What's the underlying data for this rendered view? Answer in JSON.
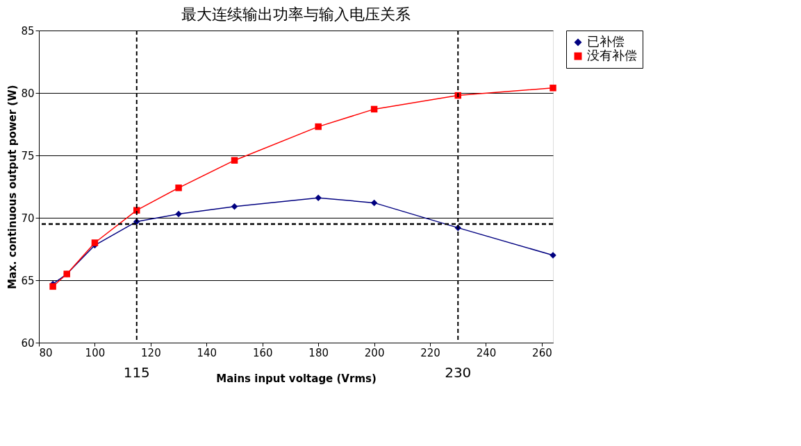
{
  "chart_data": {
    "type": "line",
    "title": "最大连续输出功率与输入电压关系",
    "xlabel": "Mains input voltage (Vrms)",
    "ylabel": "Max. continuous output power (W)",
    "x": [
      85,
      90,
      100,
      115,
      130,
      150,
      180,
      200,
      230,
      264
    ],
    "series": [
      {
        "name": "已补偿",
        "color": "#000080",
        "marker": "diamond",
        "values": [
          64.7,
          65.5,
          67.8,
          69.7,
          70.3,
          70.9,
          71.6,
          71.2,
          69.2,
          67.0
        ]
      },
      {
        "name": "没有补偿",
        "color": "#ff0000",
        "marker": "square",
        "values": [
          64.5,
          65.5,
          68.0,
          70.6,
          72.4,
          74.6,
          77.3,
          78.7,
          79.8,
          80.4
        ]
      }
    ],
    "xlim": [
      80,
      264
    ],
    "xticks": [
      80,
      100,
      120,
      140,
      160,
      180,
      200,
      220,
      240,
      260
    ],
    "ylim": [
      60,
      85
    ],
    "yticks": [
      60,
      65,
      70,
      75,
      80,
      85
    ],
    "grid": "y",
    "legend": "right",
    "line_style": "solid",
    "ref_lines": [
      {
        "axis": "x",
        "value": 115,
        "label": "115",
        "color": "#000000",
        "line_style": "dashed"
      },
      {
        "axis": "x",
        "value": 230,
        "label": "230",
        "color": "#000000",
        "line_style": "dashed"
      },
      {
        "axis": "y",
        "value": 69.5,
        "label": null,
        "color": "#000000",
        "line_style": "dashed"
      }
    ]
  }
}
